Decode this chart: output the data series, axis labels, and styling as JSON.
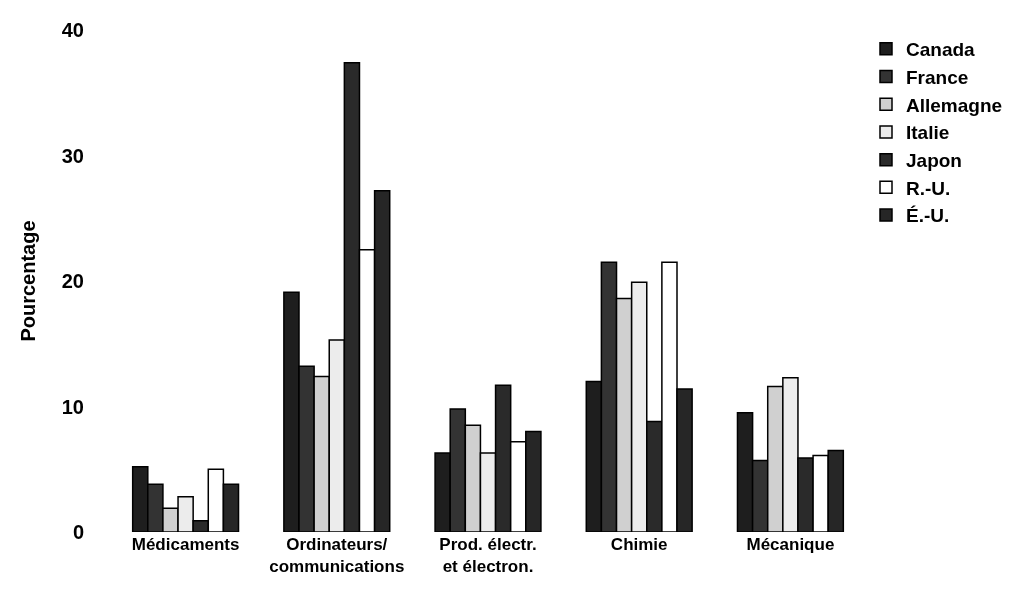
{
  "chart_data": {
    "type": "bar",
    "ylabel": "Pourcentage",
    "categories": [
      "Médicaments",
      "Ordinateurs/\ncommunications",
      "Prod. électr.\net électron.",
      "Chimie",
      "Mécanique"
    ],
    "series": [
      {
        "name": "Canada",
        "color": "#1e1e1e",
        "values": [
          5.2,
          19.1,
          6.3,
          12.0,
          9.5
        ]
      },
      {
        "name": "France",
        "color": "#333333",
        "values": [
          3.8,
          13.2,
          9.8,
          21.5,
          5.7
        ]
      },
      {
        "name": "Allemagne",
        "color": "#d0d0d0",
        "values": [
          1.9,
          12.4,
          8.5,
          18.6,
          11.6
        ]
      },
      {
        "name": "Italie",
        "color": "#ececec",
        "values": [
          2.8,
          15.3,
          6.3,
          19.9,
          12.3
        ]
      },
      {
        "name": "Japon",
        "color": "#2a2a2a",
        "values": [
          0.9,
          37.4,
          11.7,
          8.8,
          5.9
        ]
      },
      {
        "name": "R.-U.",
        "color": "#ffffff",
        "values": [
          5.0,
          22.5,
          7.2,
          21.5,
          6.1
        ]
      },
      {
        "name": "É.-U.",
        "color": "#262626",
        "values": [
          3.8,
          27.2,
          8.0,
          11.4,
          6.5
        ]
      }
    ],
    "ylim": [
      0,
      40
    ],
    "yticks": [
      0,
      10,
      20,
      30,
      40
    ],
    "grid": false,
    "legend": "top right"
  }
}
